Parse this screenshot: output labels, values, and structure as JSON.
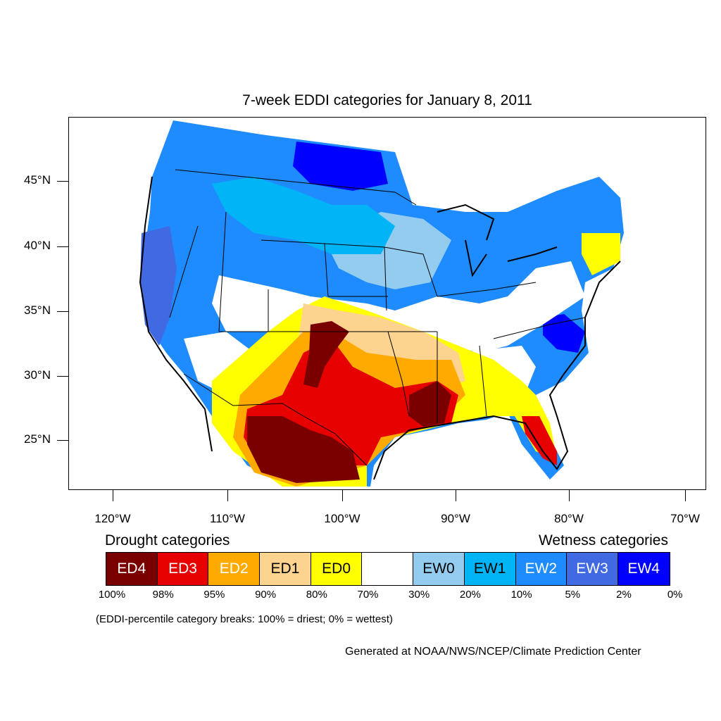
{
  "map": {
    "title": "7-week EDDI categories for January 8, 2011",
    "lat_labels": [
      "45°N",
      "40°N",
      "35°N",
      "30°N",
      "25°N"
    ],
    "lon_labels": [
      "120°W",
      "110°W",
      "100°W",
      "90°W",
      "80°W",
      "70°W"
    ]
  },
  "legend": {
    "drought_title": "Drought categories",
    "wetness_title": "Wetness categories",
    "categories": [
      {
        "label": "ED4",
        "color": "#7a0000",
        "text_color": "#ffffff"
      },
      {
        "label": "ED3",
        "color": "#e60000",
        "text_color": "#ffffff"
      },
      {
        "label": "ED2",
        "color": "#ffaa00",
        "text_color": "#ffffff"
      },
      {
        "label": "ED1",
        "color": "#fcd38f",
        "text_color": "#000000"
      },
      {
        "label": "ED0",
        "color": "#ffff00",
        "text_color": "#000000"
      },
      {
        "label": "",
        "color": "#ffffff",
        "text_color": "#000000"
      },
      {
        "label": "EW0",
        "color": "#94ccf0",
        "text_color": "#000000"
      },
      {
        "label": "EW1",
        "color": "#00b4f5",
        "text_color": "#000000"
      },
      {
        "label": "EW2",
        "color": "#1e8cff",
        "text_color": "#ffffff"
      },
      {
        "label": "EW3",
        "color": "#4169e1",
        "text_color": "#ffffff"
      },
      {
        "label": "EW4",
        "color": "#0000ff",
        "text_color": "#ffffff"
      }
    ],
    "breaks": [
      "100%",
      "98%",
      "95%",
      "90%",
      "80%",
      "70%",
      "30%",
      "20%",
      "10%",
      "5%",
      "2%",
      "0%"
    ],
    "note": "(EDDI-percentile category breaks: 100% = driest; 0% = wettest)"
  },
  "credit": "Generated at NOAA/NWS/NCEP/Climate Prediction Center"
}
